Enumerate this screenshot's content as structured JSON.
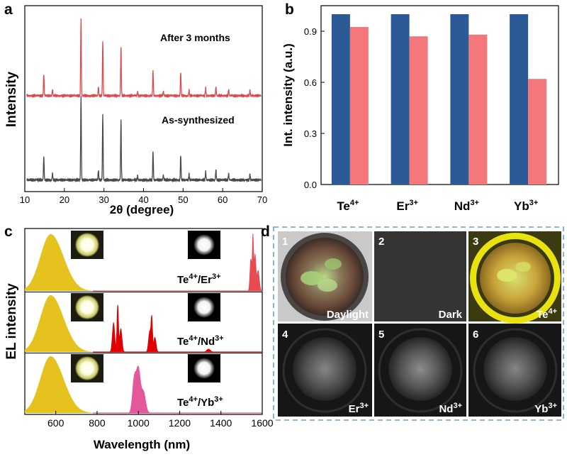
{
  "panels": {
    "a": "a",
    "b": "b",
    "c": "c",
    "d": "d"
  },
  "chart_data": [
    {
      "panel": "a",
      "type": "line",
      "xlabel": "2θ (degree)",
      "ylabel": "Intensity",
      "xlim": [
        10,
        70
      ],
      "x_ticks": [
        10,
        20,
        30,
        40,
        50,
        60,
        70
      ],
      "series": [
        {
          "name": "After 3 months",
          "color": "#e0494b",
          "peaks": [
            [
              14.8,
              0.28
            ],
            [
              17.0,
              0.08
            ],
            [
              24.2,
              1.0
            ],
            [
              28.6,
              0.12
            ],
            [
              29.7,
              0.7
            ],
            [
              34.3,
              0.64
            ],
            [
              38.5,
              0.05
            ],
            [
              42.4,
              0.32
            ],
            [
              45.0,
              0.06
            ],
            [
              49.4,
              0.3
            ],
            [
              51.5,
              0.07
            ],
            [
              55.7,
              0.1
            ],
            [
              58.3,
              0.12
            ],
            [
              61.5,
              0.08
            ],
            [
              66.9,
              0.07
            ]
          ]
        },
        {
          "name": "As-synthesized",
          "color": "#4a4a4a",
          "peaks": [
            [
              14.8,
              0.28
            ],
            [
              17.0,
              0.08
            ],
            [
              24.2,
              1.0
            ],
            [
              28.6,
              0.12
            ],
            [
              29.7,
              0.78
            ],
            [
              34.3,
              0.72
            ],
            [
              38.5,
              0.05
            ],
            [
              42.4,
              0.34
            ],
            [
              45.0,
              0.06
            ],
            [
              49.4,
              0.3
            ],
            [
              51.5,
              0.07
            ],
            [
              55.7,
              0.1
            ],
            [
              58.3,
              0.12
            ],
            [
              61.5,
              0.08
            ],
            [
              66.9,
              0.07
            ]
          ]
        }
      ]
    },
    {
      "panel": "b",
      "type": "bar",
      "ylabel": "Int. intensity (a.u.)",
      "ylim": [
        0,
        1.05
      ],
      "y_ticks": [
        "0.0",
        "0.3",
        "0.6",
        "0.9"
      ],
      "categories": [
        {
          "base": "Te",
          "sup": "4+"
        },
        {
          "base": "Er",
          "sup": "3+"
        },
        {
          "base": "Nd",
          "sup": "3+"
        },
        {
          "base": "Yb",
          "sup": "3+"
        }
      ],
      "series": [
        {
          "color": "#2b5a96",
          "values": [
            1.0,
            1.0,
            1.0,
            1.0
          ]
        },
        {
          "color": "#f4777b",
          "values": [
            0.925,
            0.87,
            0.88,
            0.62
          ]
        }
      ]
    },
    {
      "panel": "c",
      "type": "area",
      "xlabel": "Wavelength (nm)",
      "ylabel": "EL intensity",
      "xlim": [
        450,
        1600
      ],
      "x_ticks": [
        600,
        800,
        1000,
        1200,
        1400,
        1600
      ],
      "visible_band": {
        "center": 575,
        "width": 50,
        "color": "#e5c21e"
      },
      "traces": [
        {
          "name": {
            "base1": "Te",
            "sup1": "4+",
            "mid": "/Er",
            "sup2": "3+"
          },
          "color": "#e84a52",
          "peaks": [
            [
              1545,
              0.55,
              6
            ],
            [
              1555,
              0.9,
              4
            ],
            [
              1565,
              0.62,
              6
            ],
            [
              1580,
              0.35,
              8
            ]
          ]
        },
        {
          "name": {
            "base1": "Te",
            "sup1": "4+",
            "mid": "/Nd",
            "sup2": "3+"
          },
          "color": "#e00000",
          "peaks": [
            [
              880,
              0.5,
              8
            ],
            [
              900,
              0.8,
              5
            ],
            [
              915,
              0.4,
              8
            ],
            [
              1055,
              0.35,
              8
            ],
            [
              1065,
              0.55,
              5
            ],
            [
              1080,
              0.25,
              8
            ],
            [
              1340,
              0.05,
              12
            ]
          ]
        },
        {
          "name": {
            "base1": "Te",
            "sup1": "4+",
            "mid": "/Yb",
            "sup2": "3+"
          },
          "color": "#e5579b",
          "peaks": [
            [
              980,
              0.55,
              12
            ],
            [
              1000,
              0.75,
              14
            ],
            [
              1025,
              0.35,
              14
            ]
          ]
        }
      ]
    }
  ],
  "photos": [
    {
      "num": "1",
      "label": "Daylight",
      "sup": ""
    },
    {
      "num": "2",
      "label": "Dark",
      "sup": ""
    },
    {
      "num": "3",
      "label": "Te",
      "sup": "4+"
    },
    {
      "num": "4",
      "label": "Er",
      "sup": "3+"
    },
    {
      "num": "5",
      "label": "Nd",
      "sup": "3+"
    },
    {
      "num": "6",
      "label": "Yb",
      "sup": "3+"
    }
  ]
}
